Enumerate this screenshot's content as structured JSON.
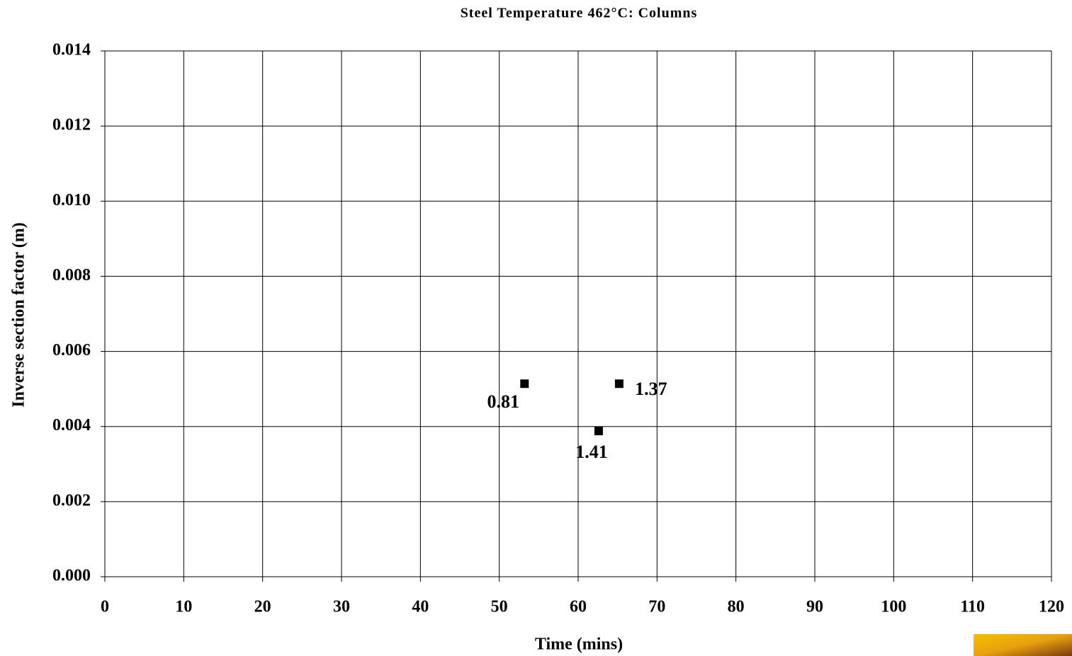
{
  "chart_data": {
    "type": "scatter",
    "title": "Steel Temperature 462°C: Columns",
    "x_label": "Time (mins)",
    "y_label": "Inverse section factor (m)",
    "series": [
      {
        "name": "Columns",
        "color": "#000000",
        "x": [
          53.2,
          62.6,
          65.2
        ],
        "values": [
          0.00514,
          0.00388,
          0.00514
        ],
        "labels": [
          "0.81",
          "1.41",
          "1.37"
        ]
      }
    ],
    "xlim": [
      0,
      120
    ],
    "xticks": [
      0,
      10,
      20,
      30,
      40,
      50,
      60,
      70,
      80,
      90,
      100,
      110,
      120
    ],
    "ylim": [
      0,
      0.014
    ],
    "yticks": [
      {
        "value": 0,
        "label": "0.000"
      },
      0.002,
      0.004,
      0.006,
      0.008,
      {
        "value": 0.01,
        "label": "0.010"
      },
      0.012,
      0.014
    ],
    "grid": true
  }
}
